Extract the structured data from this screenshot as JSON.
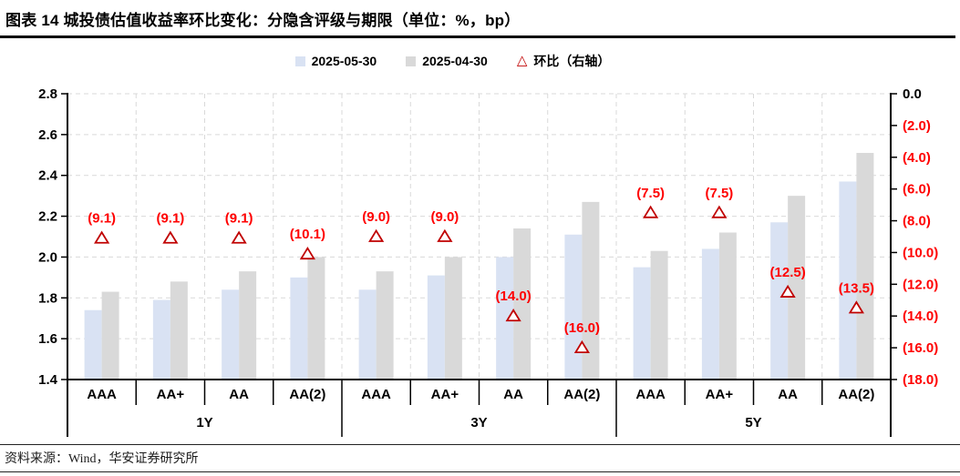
{
  "header": {
    "title": "图表 14 城投债估值收益率环比变化：分隐含评级与期限（单位：%，bp）"
  },
  "footer": {
    "source": "资料来源：Wind，华安证券研究所"
  },
  "colors": {
    "series_2025_05_30": "#d9e2f3",
    "series_2025_04_30": "#d9d9d9",
    "change_marker_stroke": "#c00000",
    "change_label": "#ff0000",
    "gridline": "#d9d9d9",
    "axis": "#000000"
  },
  "chart_data": {
    "type": "bar",
    "title": "图表 14 城投债估值收益率环比变化：分隐含评级与期限（单位：%，bp）",
    "legend_position": "top",
    "grid": true,
    "groups": [
      {
        "label": "1Y",
        "categories": [
          "AAA",
          "AA+",
          "AA",
          "AA(2)"
        ]
      },
      {
        "label": "3Y",
        "categories": [
          "AAA",
          "AA+",
          "AA",
          "AA(2)"
        ]
      },
      {
        "label": "5Y",
        "categories": [
          "AAA",
          "AA+",
          "AA",
          "AA(2)"
        ]
      }
    ],
    "left_axis": {
      "min": 1.4,
      "max": 2.8,
      "step": 0.2,
      "ticks": [
        "2.8",
        "2.6",
        "2.4",
        "2.2",
        "2.0",
        "1.8",
        "1.6",
        "1.4"
      ]
    },
    "right_axis": {
      "min": -18,
      "max": 0,
      "step": 2,
      "ticks": [
        "0.0",
        "(2.0)",
        "(4.0)",
        "(6.0)",
        "(8.0)",
        "(10.0)",
        "(12.0)",
        "(14.0)",
        "(16.0)",
        "(18.0)"
      ]
    },
    "series": [
      {
        "name": "2025-05-30",
        "type": "bar",
        "axis": "left",
        "color": "#d9e2f3",
        "values": [
          1.74,
          1.79,
          1.84,
          1.9,
          1.84,
          1.91,
          2.0,
          2.11,
          1.95,
          2.04,
          2.17,
          2.37
        ]
      },
      {
        "name": "2025-04-30",
        "type": "bar",
        "axis": "left",
        "color": "#d9d9d9",
        "values": [
          1.83,
          1.88,
          1.93,
          2.0,
          1.93,
          2.0,
          2.14,
          2.27,
          2.03,
          2.12,
          2.3,
          2.51
        ]
      },
      {
        "name": "环比（右轴）",
        "type": "scatter",
        "axis": "right",
        "marker": "open-triangle",
        "color": "#c00000",
        "label_color": "#ff0000",
        "values": [
          -9.1,
          -9.1,
          -9.1,
          -10.1,
          -9.0,
          -9.0,
          -14.0,
          -16.0,
          -7.5,
          -7.5,
          -12.5,
          -13.5
        ],
        "point_labels": [
          "(9.1)",
          "(9.1)",
          "(9.1)",
          "(10.1)",
          "(9.0)",
          "(9.0)",
          "(14.0)",
          "(16.0)",
          "(7.5)",
          "(7.5)",
          "(12.5)",
          "(13.5)"
        ]
      }
    ]
  }
}
